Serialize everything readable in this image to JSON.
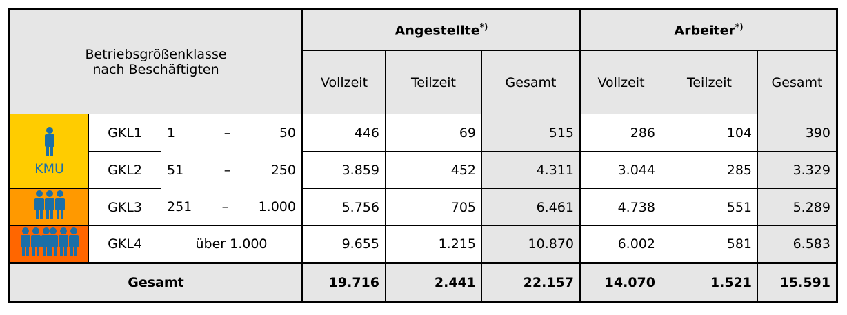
{
  "table": {
    "corner": [
      "Betriebsgrößenklasse",
      "nach Beschäftigten"
    ],
    "groups": [
      {
        "name": "Angestellte",
        "note": "*)"
      },
      {
        "name": "Arbeiter",
        "note": "*)"
      }
    ],
    "subheaders": [
      "Vollzeit",
      "Teilzeit",
      "Gesamt",
      "Vollzeit",
      "Teilzeit",
      "Gesamt"
    ],
    "sme_label": "KMU",
    "rows": [
      {
        "class": "GKL1",
        "range": [
          "1",
          "–",
          "50"
        ],
        "values": [
          "446",
          "69",
          "515",
          "286",
          "104",
          "390"
        ]
      },
      {
        "class": "GKL2",
        "range": [
          "51",
          "–",
          "250"
        ],
        "values": [
          "3.859",
          "452",
          "4.311",
          "3.044",
          "285",
          "3.329"
        ]
      },
      {
        "class": "GKL3",
        "range": [
          "251",
          "–",
          "1.000"
        ],
        "values": [
          "5.756",
          "705",
          "6.461",
          "4.738",
          "551",
          "5.289"
        ]
      },
      {
        "class": "GKL4",
        "range": [
          "über 1.000"
        ],
        "values": [
          "9.655",
          "1.215",
          "10.870",
          "6.002",
          "581",
          "6.583"
        ]
      }
    ],
    "total": {
      "label": "Gesamt",
      "values": [
        "19.716",
        "2.441",
        "22.157",
        "14.070",
        "1.521",
        "15.591"
      ]
    }
  }
}
